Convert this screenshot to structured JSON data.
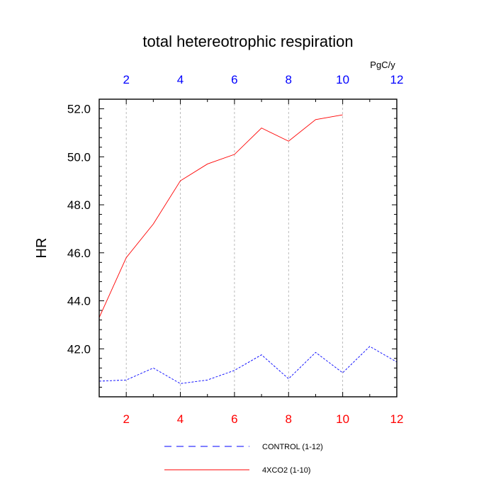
{
  "chart_data": {
    "type": "line",
    "title": "total hetereotrophic respiration",
    "xlabel": "",
    "ylabel": "HR",
    "top_axis_units": "PgC/y",
    "xlim": [
      1,
      12
    ],
    "ylim": [
      40.0,
      52.4
    ],
    "x_ticks": [
      2,
      4,
      6,
      8,
      10,
      12
    ],
    "x_tick_labels": [
      "2",
      "4",
      "6",
      "8",
      "10",
      "12"
    ],
    "y_ticks": [
      42.0,
      44.0,
      46.0,
      48.0,
      50.0,
      52.0
    ],
    "y_tick_labels": [
      "42.0",
      "44.0",
      "46.0",
      "48.0",
      "50.0",
      "52.0"
    ],
    "bottom_tick_color": "#ff0000",
    "top_tick_color": "#0000ff",
    "vertical_grid": true,
    "series": [
      {
        "name": "4XCO2 (1-10)",
        "color": "#ff0000",
        "dash": "solid",
        "x": [
          1,
          2,
          3,
          4,
          5,
          6,
          7,
          8,
          9,
          10
        ],
        "values": [
          43.3,
          45.8,
          47.2,
          49.0,
          49.7,
          50.1,
          51.2,
          50.65,
          51.55,
          51.75
        ]
      },
      {
        "name": "CONTROL (1-12)",
        "color": "#0000ff",
        "dash": "dashed",
        "x": [
          1,
          2,
          3,
          4,
          5,
          6,
          7,
          8,
          9,
          10,
          11,
          12
        ],
        "values": [
          40.65,
          40.7,
          41.2,
          40.55,
          40.7,
          41.1,
          41.75,
          40.75,
          41.85,
          41.0,
          42.1,
          41.45
        ]
      }
    ],
    "legend": [
      {
        "label": "CONTROL (1-12)",
        "color": "#0000ff",
        "dash": "dashed"
      },
      {
        "label": "4XCO2 (1-10)",
        "color": "#ff0000",
        "dash": "solid"
      }
    ],
    "legend_position": "bottom-center"
  }
}
